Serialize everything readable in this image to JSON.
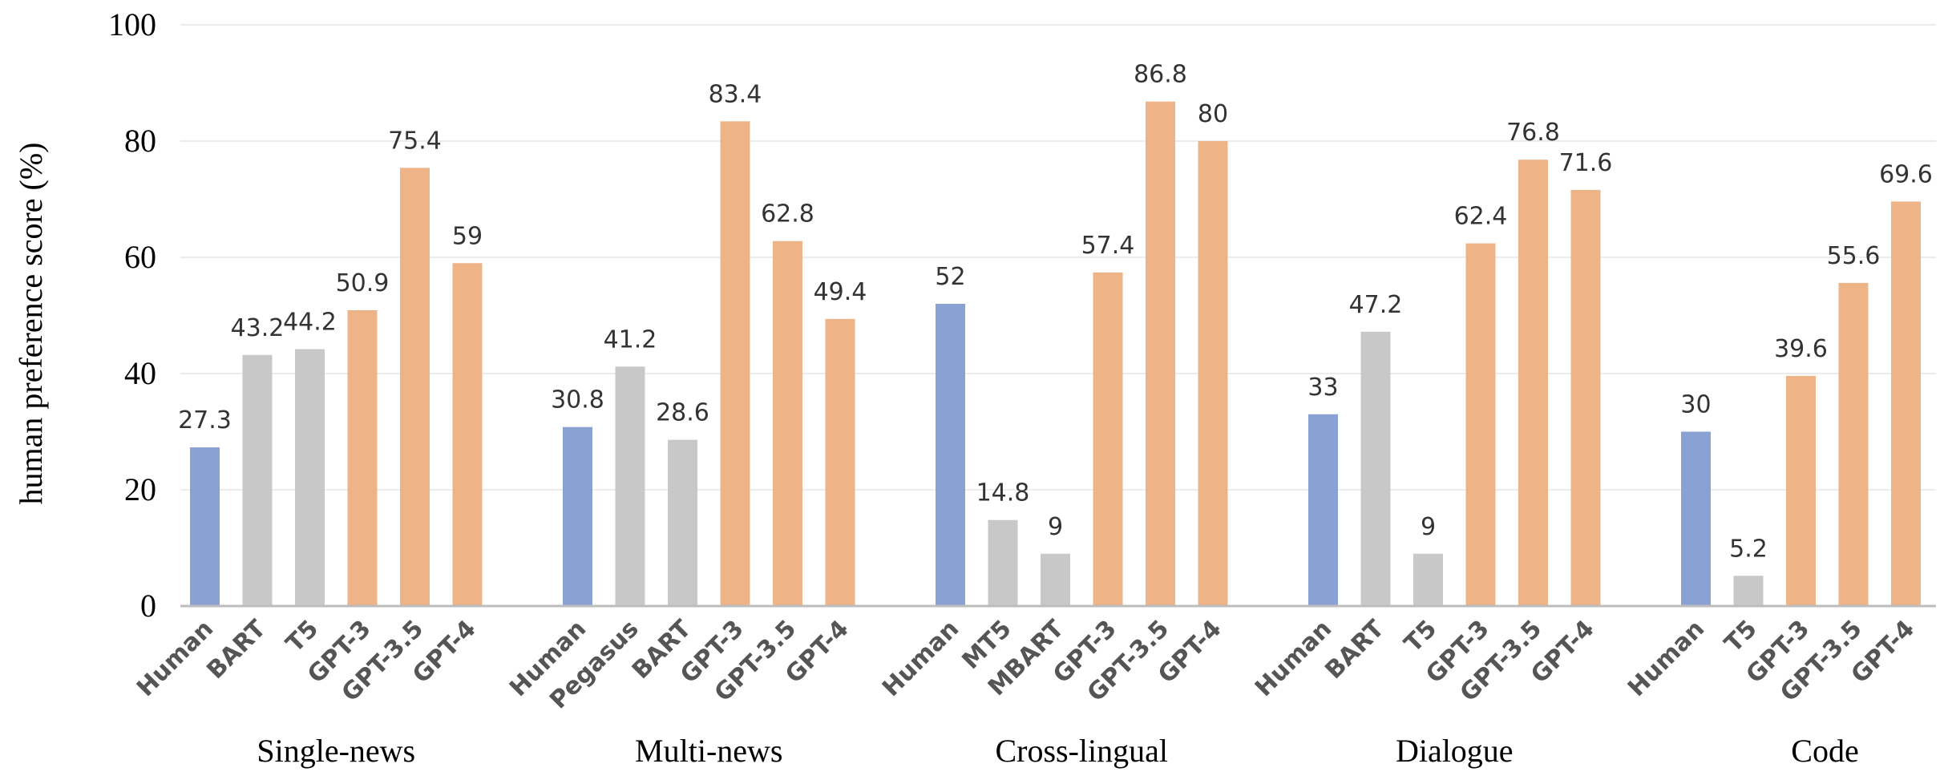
{
  "chart_data": {
    "type": "bar",
    "ylabel": "human preference score  (%)",
    "ylim": [
      0,
      100
    ],
    "yticks": [
      0,
      20,
      40,
      60,
      80,
      100
    ],
    "grid": true,
    "colors": {
      "human": "#8aa1d4",
      "baseline": "#c8c8c8",
      "gpt": "#eeb488"
    },
    "groups": [
      {
        "name": "Single-news",
        "bars": [
          {
            "label": "Human",
            "value": 27.3,
            "kind": "human"
          },
          {
            "label": "BART",
            "value": 43.2,
            "kind": "baseline"
          },
          {
            "label": "T5",
            "value": 44.2,
            "kind": "baseline"
          },
          {
            "label": "GPT-3",
            "value": 50.9,
            "kind": "gpt"
          },
          {
            "label": "GPT-3.5",
            "value": 75.4,
            "kind": "gpt"
          },
          {
            "label": "GPT-4",
            "value": 59,
            "kind": "gpt"
          }
        ]
      },
      {
        "name": "Multi-news",
        "bars": [
          {
            "label": "Human",
            "value": 30.8,
            "kind": "human"
          },
          {
            "label": "Pegasus",
            "value": 41.2,
            "kind": "baseline"
          },
          {
            "label": "BART",
            "value": 28.6,
            "kind": "baseline"
          },
          {
            "label": "GPT-3",
            "value": 83.4,
            "kind": "gpt"
          },
          {
            "label": "GPT-3.5",
            "value": 62.8,
            "kind": "gpt"
          },
          {
            "label": "GPT-4",
            "value": 49.4,
            "kind": "gpt"
          }
        ]
      },
      {
        "name": "Cross-lingual",
        "bars": [
          {
            "label": "Human",
            "value": 52,
            "kind": "human"
          },
          {
            "label": "MT5",
            "value": 14.8,
            "kind": "baseline"
          },
          {
            "label": "MBART",
            "value": 9,
            "kind": "baseline"
          },
          {
            "label": "GPT-3",
            "value": 57.4,
            "kind": "gpt"
          },
          {
            "label": "GPT-3.5",
            "value": 86.8,
            "kind": "gpt"
          },
          {
            "label": "GPT-4",
            "value": 80,
            "kind": "gpt"
          }
        ]
      },
      {
        "name": "Dialogue",
        "bars": [
          {
            "label": "Human",
            "value": 33,
            "kind": "human"
          },
          {
            "label": "BART",
            "value": 47.2,
            "kind": "baseline"
          },
          {
            "label": "T5",
            "value": 9,
            "kind": "baseline"
          },
          {
            "label": "GPT-3",
            "value": 62.4,
            "kind": "gpt"
          },
          {
            "label": "GPT-3.5",
            "value": 76.8,
            "kind": "gpt"
          },
          {
            "label": "GPT-4",
            "value": 71.6,
            "kind": "gpt"
          }
        ]
      },
      {
        "name": "Code",
        "bars": [
          {
            "label": "Human",
            "value": 30,
            "kind": "human"
          },
          {
            "label": "T5",
            "value": 5.2,
            "kind": "baseline"
          },
          {
            "label": "GPT-3",
            "value": 39.6,
            "kind": "gpt"
          },
          {
            "label": "GPT-3.5",
            "value": 55.6,
            "kind": "gpt"
          },
          {
            "label": "GPT-4",
            "value": 69.6,
            "kind": "gpt"
          }
        ]
      }
    ]
  }
}
